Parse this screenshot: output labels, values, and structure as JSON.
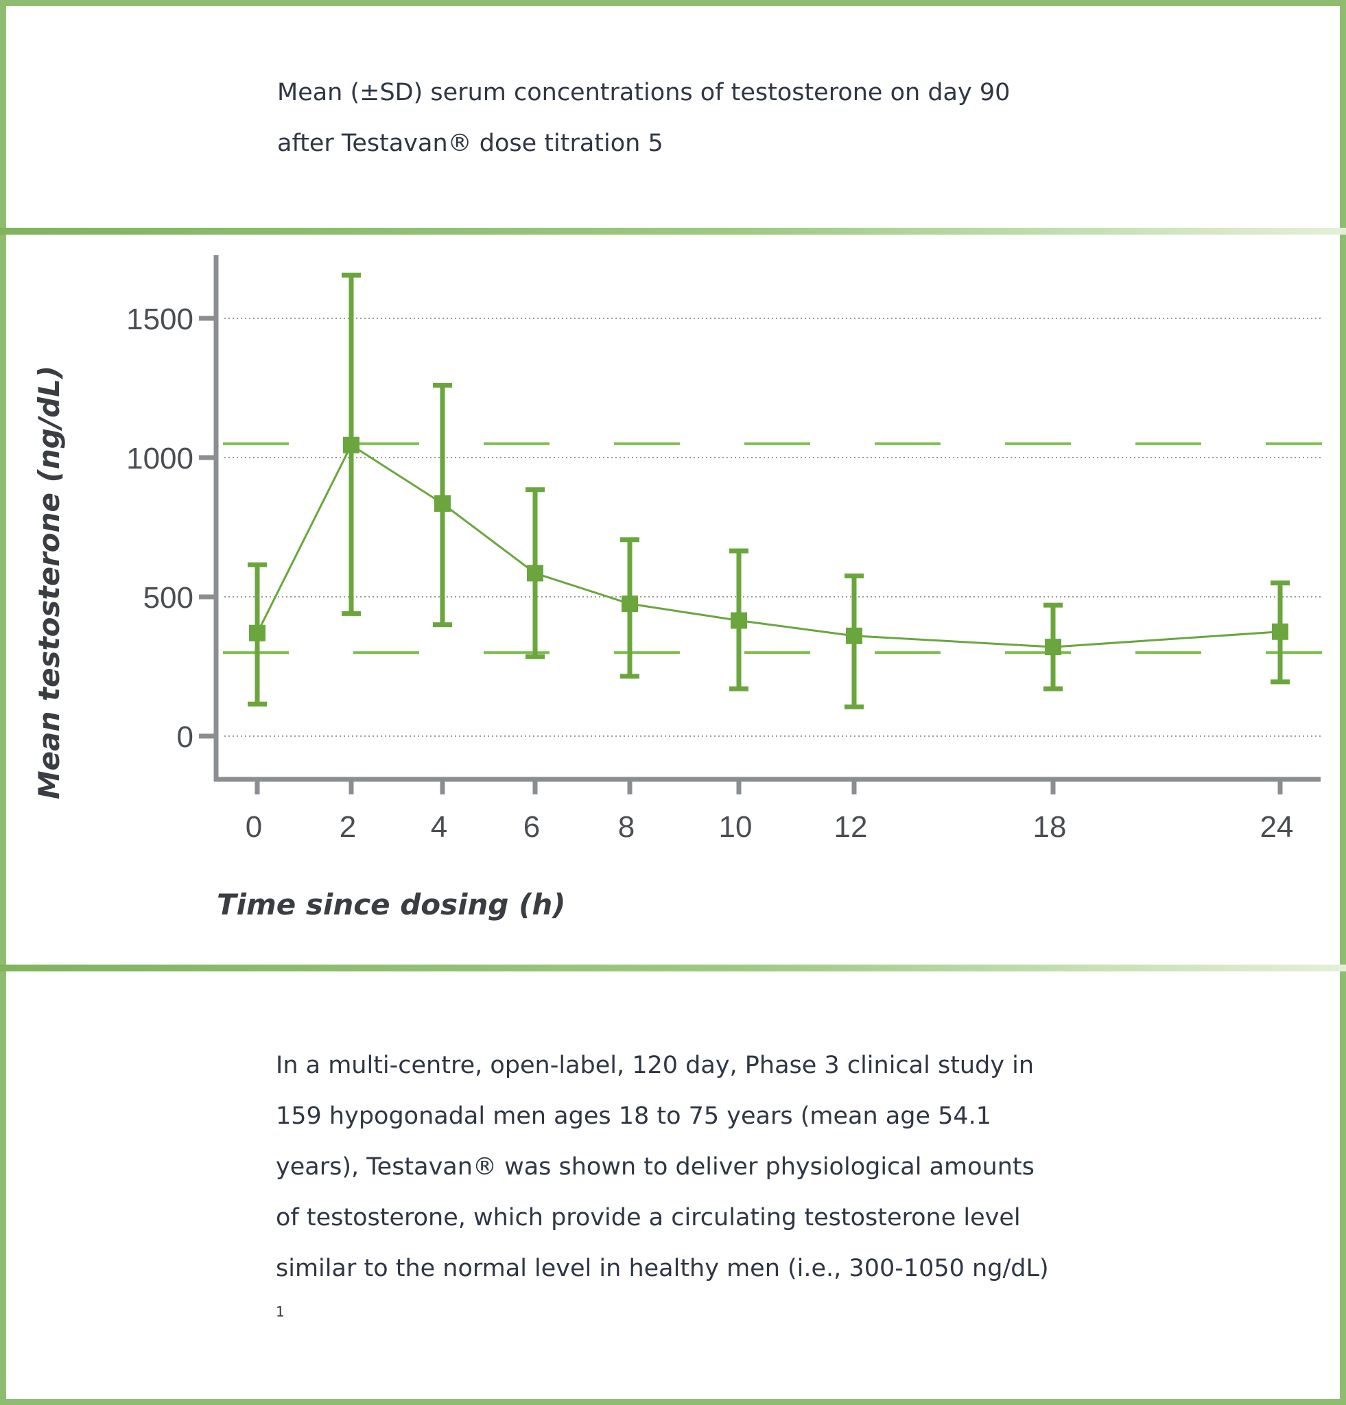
{
  "header": {
    "lines": [
      "Mean (±SD) serum concentrations of testosterone on day 90",
      "after Testavan® dose titration 5"
    ]
  },
  "chart_data": {
    "type": "line",
    "title": "Mean (±SD) serum concentrations of testosterone on day 90 after Testavan® dose titration 5",
    "xlabel": "Time since dosing (h)",
    "ylabel": "Mean testosterone (ng/dL)",
    "x_ticks": [
      "0",
      "2",
      "4",
      "6",
      "8",
      "10",
      "12",
      "18",
      "24"
    ],
    "y_ticks": [
      "1500",
      "1000",
      "500",
      "0"
    ],
    "ylim": [
      -150,
      1720
    ],
    "grid": "horizontal dotted",
    "reference_lines": [
      1050,
      300
    ],
    "series": [
      {
        "x": [
          0,
          2,
          4,
          6,
          8,
          10,
          12,
          18,
          24
        ],
        "y": [
          370,
          1045,
          835,
          585,
          475,
          415,
          360,
          320,
          375
        ],
        "y_upper": [
          615,
          1655,
          1260,
          885,
          705,
          665,
          575,
          470,
          550
        ],
        "y_lower": [
          115,
          440,
          400,
          285,
          215,
          170,
          105,
          170,
          195
        ]
      }
    ],
    "colors": {
      "series": "#6aa63d",
      "reference": "#7bbd4a",
      "axis": "#8a8e93",
      "grid": "#9a9a9a"
    }
  },
  "body": {
    "lines": [
      "In a multi-centre, open-label, 120 day, Phase 3 clinical study in",
      "159 hypogonadal men ages 18 to 75 years (mean age 54.1",
      "years), Testavan® was shown to deliver physiological amounts",
      "of testosterone, which provide a circulating testosterone level",
      "similar to the normal level in healthy men (i.e., 300-1050 ng/dL)"
    ],
    "footnote": "1"
  }
}
